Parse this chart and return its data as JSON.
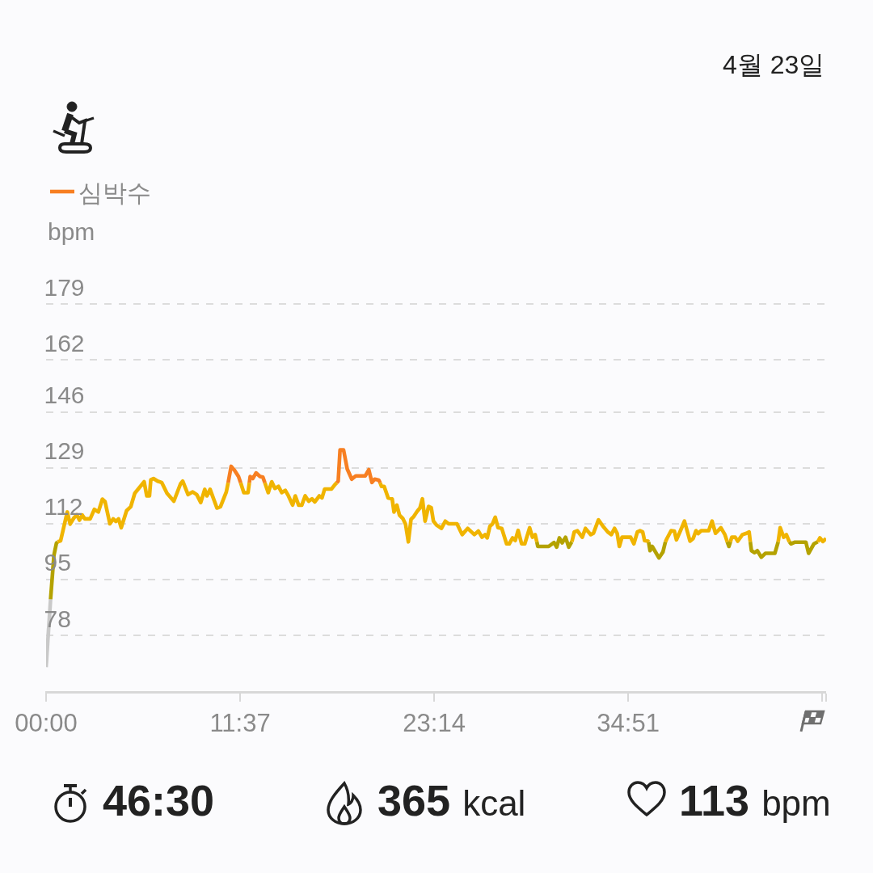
{
  "chart_data": {
    "type": "line",
    "ylabel": "bpm",
    "legend": "top left",
    "grid": "y",
    "xlim": [
      0,
      46.7
    ],
    "xticks": [
      {
        "value": 0,
        "label": "00:00"
      },
      {
        "value": 11.6167,
        "label": "11:37"
      },
      {
        "value": 23.2333,
        "label": "23:14"
      },
      {
        "value": 34.85,
        "label": "34:51"
      },
      {
        "value": 46.4667,
        "label": null
      },
      {
        "value": 46.7,
        "label": null
      }
    ],
    "ylim": [
      61,
      179.5
    ],
    "yticks": [
      78,
      95,
      112,
      129,
      146,
      162,
      179
    ],
    "annotations": [
      "4월 23일",
      "46:30",
      "365 kcal",
      "113 bpm"
    ],
    "series": [
      {
        "color": "#c9c9c9",
        "x": [
          0,
          0.27
        ],
        "values": [
          68.3,
          89.0
        ]
      },
      {
        "color": "#b4a200",
        "x": [
          0.27,
          0.47,
          0.62,
          0.69,
          null,
          29.38,
          29.44,
          30.09,
          30.41,
          30.57,
          30.73,
          30.9,
          31.1,
          31.29,
          31.45,
          31.48,
          null,
          36.07,
          36.16,
          36.29,
          36.69,
          36.93,
          37.08,
          null,
          40.78,
          40.88,
          40.97,
          null,
          42.16,
          42.23,
          42.42,
          42.58,
          42.82,
          43.06,
          43.63,
          43.83,
          null,
          44.5,
          44.6,
          44.84,
          45.49,
          45.65,
          45.97,
          46.2
        ],
        "values": [
          89.0,
          102.4,
          106.1,
          106.5,
          null,
          106.5,
          105.1,
          105.1,
          106.3,
          104.9,
          107.7,
          106.2,
          107.9,
          104.9,
          106.3,
          106.5,
          null,
          106.5,
          103.8,
          105.1,
          101.6,
          103.4,
          106.5,
          null,
          106.5,
          105.1,
          106.5,
          null,
          106.5,
          103.8,
          103.2,
          103.8,
          101.8,
          103.0,
          103.0,
          106.5,
          null,
          106.5,
          105.9,
          106.4,
          106.4,
          103.0,
          105.9,
          106.5
        ]
      },
      {
        "color": "#f0b400",
        "x": [
          0.69,
          0.87,
          1.27,
          1.44,
          1.68,
          1.84,
          2.0,
          2.16,
          2.32,
          2.64,
          2.89,
          3.13,
          3.37,
          3.53,
          3.82,
          4.02,
          4.18,
          4.34,
          4.5,
          4.82,
          5.07,
          5.31,
          5.87,
          6.03,
          6.19,
          6.27,
          6.43,
          6.68,
          6.92,
          7.24,
          7.65,
          8.05,
          8.18,
          8.5,
          8.78,
          9.02,
          9.26,
          9.5,
          9.63,
          9.82,
          10.23,
          10.44,
          10.79,
          10.9,
          null,
          11.65,
          11.84,
          12.09,
          12.17,
          null,
          13.1,
          13.3,
          13.51,
          13.7,
          13.91,
          14.11,
          14.32,
          14.51,
          14.76,
          14.92,
          15.12,
          15.31,
          15.51,
          15.72,
          15.92,
          16.09,
          16.36,
          16.52,
          16.68,
          17.09,
          17.3,
          17.4,
          null,
          20.0,
          20.08,
          20.24,
          20.48,
          20.72,
          20.83,
          21.0,
          21.16,
          21.36,
          21.52,
          21.69,
          21.85,
          22.01,
          22.22,
          22.38,
          22.53,
          22.69,
          22.9,
          23.06,
          23.19,
          23.38,
          23.67,
          23.9,
          24.1,
          24.6,
          24.91,
          25.24,
          25.64,
          25.88,
          26.1,
          26.28,
          26.41,
          26.57,
          26.73,
          26.89,
          27.06,
          27.28,
          27.57,
          27.73,
          27.93,
          28.09,
          28.26,
          28.47,
          28.66,
          28.95,
          29.12,
          29.28,
          29.38,
          null,
          31.48,
          31.62,
          31.81,
          32.1,
          32.29,
          32.61,
          32.77,
          33.07,
          33.35,
          33.63,
          33.84,
          34.03,
          34.19,
          34.32,
          34.48,
          35.0,
          35.19,
          35.4,
          35.56,
          35.72,
          35.83,
          36.04,
          36.07,
          null,
          37.08,
          37.17,
          37.42,
          37.61,
          37.74,
          37.98,
          38.22,
          38.55,
          38.74,
          38.91,
          39.04,
          39.22,
          39.67,
          39.87,
          40.08,
          40.4,
          40.64,
          40.78,
          null,
          40.97,
          41.05,
          41.26,
          41.41,
          41.69,
          41.93,
          42.09,
          42.16,
          null,
          43.83,
          43.95,
          44.16,
          44.32,
          44.5,
          null,
          46.2,
          46.33,
          46.5,
          46.7
        ],
        "values": [
          106.5,
          106.8,
          115.6,
          111.9,
          113.9,
          114.7,
          113.1,
          114.7,
          113.5,
          113.5,
          116.4,
          115.6,
          119.5,
          118.8,
          112.0,
          113.5,
          112.7,
          113.5,
          110.8,
          116.0,
          117.2,
          121.3,
          124.8,
          120.5,
          120.5,
          125.4,
          125.8,
          125.0,
          124.6,
          121.3,
          118.9,
          124.2,
          125.0,
          120.9,
          121.7,
          120.9,
          118.5,
          122.5,
          120.5,
          122.5,
          116.8,
          117.2,
          121.7,
          124.5,
          null,
          124.5,
          121.5,
          121.5,
          124.5,
          null,
          124.5,
          121.5,
          124.8,
          122.8,
          123.4,
          121.5,
          122.2,
          120.5,
          117.7,
          120.5,
          117.7,
          117.7,
          120.5,
          118.9,
          119.6,
          118.7,
          120.5,
          119.9,
          122.6,
          122.6,
          124.0,
          124.5,
          null,
          124.5,
          123.4,
          123.4,
          119.9,
          119.6,
          115.6,
          117.7,
          114.6,
          113.6,
          111.9,
          106.5,
          113.4,
          114.2,
          115.8,
          116.8,
          119.6,
          112.8,
          117.3,
          116.9,
          112.8,
          111.6,
          110.6,
          112.8,
          112.0,
          112.0,
          108.7,
          110.6,
          108.7,
          109.8,
          107.9,
          108.7,
          107.7,
          111.2,
          112.0,
          114.0,
          110.8,
          110.6,
          105.9,
          105.9,
          107.7,
          106.9,
          110.0,
          105.9,
          105.9,
          110.8,
          107.9,
          108.7,
          106.5,
          null,
          106.5,
          109.5,
          109.9,
          107.9,
          110.6,
          108.7,
          109.1,
          113.2,
          111.2,
          109.5,
          108.7,
          110.6,
          109.1,
          105.1,
          107.9,
          107.9,
          105.9,
          109.5,
          109.9,
          109.5,
          106.9,
          106.7,
          106.5,
          null,
          106.5,
          107.5,
          109.9,
          109.8,
          107.1,
          109.9,
          112.8,
          106.7,
          107.5,
          109.9,
          109.0,
          109.9,
          109.9,
          112.8,
          109.1,
          110.8,
          108.7,
          106.5,
          null,
          106.5,
          107.9,
          107.9,
          106.7,
          108.7,
          109.1,
          109.5,
          106.5,
          null,
          106.5,
          110.8,
          107.9,
          108.7,
          106.5,
          null,
          106.5,
          107.7,
          106.6,
          107.5
        ]
      },
      {
        "name": "심박수",
        "color": "#f77f22",
        "x": [
          10.9,
          11.08,
          11.28,
          11.52,
          11.65,
          null,
          12.17,
          12.22,
          12.38,
          12.57,
          12.81,
          12.98,
          13.1,
          null,
          17.4,
          17.49,
          17.6,
          17.81,
          18.03,
          18.3,
          18.54,
          19.11,
          19.32,
          19.51,
          19.67,
          19.92,
          20.0
        ],
        "values": [
          124.5,
          129.5,
          128.3,
          126.4,
          124.5,
          null,
          124.5,
          126.4,
          125.8,
          127.5,
          126.4,
          126.2,
          124.5,
          null,
          124.5,
          125.0,
          134.5,
          134.5,
          128.7,
          125.6,
          126.6,
          126.6,
          128.5,
          124.6,
          125.6,
          125.3,
          124.5
        ]
      }
    ]
  }
}
